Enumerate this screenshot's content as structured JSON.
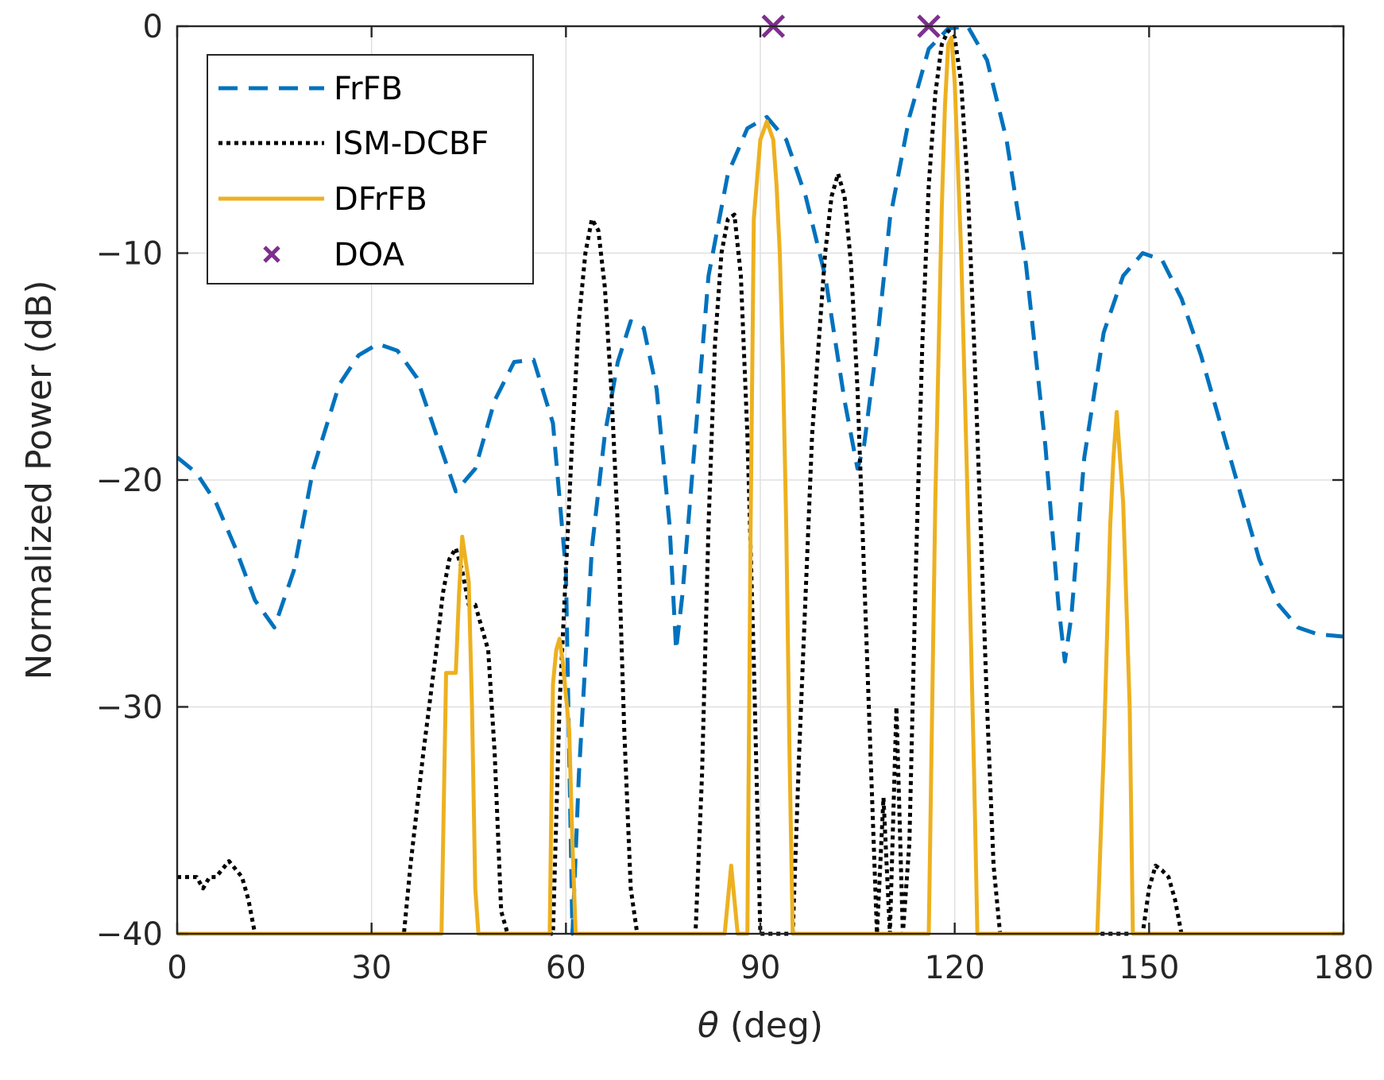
{
  "chart_data": {
    "type": "line",
    "title": "",
    "xlabel_symbol": "θ",
    "xlabel_unit": " (deg)",
    "ylabel": "Normalized Power (dB)",
    "xlim": [
      0,
      180
    ],
    "ylim": [
      -40,
      0
    ],
    "xticks": [
      0,
      30,
      60,
      90,
      120,
      150,
      180
    ],
    "yticks": [
      0,
      -10,
      -20,
      -30,
      -40
    ],
    "xtick_labels": [
      "0",
      "30",
      "60",
      "90",
      "120",
      "150",
      "180"
    ],
    "ytick_labels": [
      "0",
      "−10",
      "−20",
      "−30",
      "−40"
    ],
    "grid": true,
    "legend_position": "top-left",
    "series": [
      {
        "name": "FrFB",
        "style": "dashed",
        "color": "#0072BD",
        "x": [
          0,
          3,
          6,
          9,
          12,
          15,
          18,
          21,
          25,
          28,
          31,
          34,
          37,
          40,
          43,
          46,
          49,
          52,
          55,
          58,
          60,
          61,
          62,
          64,
          66,
          68,
          70,
          72,
          74,
          76,
          77,
          78,
          80,
          82,
          85,
          88,
          91,
          94,
          97,
          100,
          103,
          105,
          106,
          108,
          110,
          113,
          116,
          119,
          122,
          125,
          128,
          131,
          134,
          136,
          137,
          138,
          140,
          143,
          146,
          149,
          152,
          155,
          158,
          161,
          164,
          167,
          170,
          173,
          176,
          180
        ],
        "y": [
          -19,
          -19.7,
          -21,
          -23,
          -25.3,
          -26.5,
          -24,
          -19.5,
          -15.8,
          -14.5,
          -14,
          -14.3,
          -15.5,
          -18,
          -20.5,
          -19.5,
          -16.5,
          -14.8,
          -14.7,
          -17.5,
          -24,
          -40,
          -33,
          -23,
          -18,
          -14.8,
          -13,
          -13.3,
          -16,
          -22,
          -27.5,
          -25,
          -18,
          -11,
          -6.5,
          -4.5,
          -4,
          -5,
          -7.5,
          -11,
          -16.5,
          -19.5,
          -18.5,
          -14,
          -8.5,
          -4,
          -1,
          -0.1,
          0,
          -1.5,
          -5,
          -10.5,
          -18.5,
          -25.5,
          -28,
          -26,
          -19,
          -13.5,
          -11,
          -10,
          -10.3,
          -12,
          -14.5,
          -17.5,
          -20.5,
          -23.5,
          -25.5,
          -26.5,
          -26.8,
          -26.9
        ]
      },
      {
        "name": "ISM-DCBF",
        "style": "dotted",
        "color": "#000000",
        "x": [
          0,
          3,
          4,
          5,
          6,
          8,
          10,
          11,
          12,
          12.5,
          35,
          36,
          38,
          40,
          41,
          42,
          43,
          44,
          45,
          46,
          47,
          48,
          49,
          50,
          51,
          52,
          58,
          59,
          60,
          61,
          62,
          63,
          64,
          65,
          66,
          67,
          68,
          69,
          70,
          71,
          80,
          81,
          82,
          83,
          84,
          85,
          86,
          87,
          88,
          89,
          90,
          95,
          96,
          98,
          100,
          101,
          102,
          103,
          104,
          105,
          106,
          107,
          108,
          109,
          110,
          111,
          112,
          113,
          114,
          115,
          116,
          117,
          118,
          119,
          120,
          121,
          122,
          123,
          124,
          125,
          126,
          127,
          128,
          148,
          149,
          150,
          151,
          152,
          153,
          154,
          155,
          155.5
        ],
        "y": [
          -37.5,
          -37.5,
          -38,
          -37.5,
          -37.5,
          -36.8,
          -37.5,
          -38.5,
          -40,
          -40,
          -40,
          -37,
          -32,
          -27.5,
          -25,
          -23.5,
          -23,
          -24,
          -25.5,
          -25.5,
          -26.5,
          -27.5,
          -32,
          -39,
          -40,
          -40,
          -40,
          -30,
          -24,
          -18,
          -13,
          -10,
          -8.5,
          -9,
          -11.5,
          -16,
          -22,
          -31,
          -38,
          -40,
          -40,
          -33,
          -22,
          -14,
          -10,
          -8.5,
          -8.3,
          -11,
          -18,
          -28,
          -40,
          -40,
          -32,
          -18,
          -10,
          -7.5,
          -6.5,
          -7.5,
          -10.5,
          -16,
          -24,
          -32,
          -40,
          -34,
          -40,
          -30,
          -40,
          -36,
          -24,
          -14,
          -7,
          -3,
          -0.8,
          -0.2,
          -0.5,
          -2.5,
          -7,
          -14,
          -22,
          -30,
          -37,
          -40,
          -40,
          -40,
          -40,
          -38,
          -37,
          -37.2,
          -37.5,
          -38.5,
          -40,
          -40
        ]
      },
      {
        "name": "DFrFB",
        "style": "solid",
        "color": "#EDB120",
        "x": [
          0,
          40.8,
          41.5,
          42.5,
          43,
          43.5,
          44,
          44.5,
          45,
          45.5,
          46,
          46.5,
          57.5,
          58,
          58.5,
          59,
          59.5,
          60,
          60.5,
          61,
          61.5,
          84.5,
          85,
          85.5,
          86,
          86.5,
          87,
          88,
          88.5,
          89,
          90,
          91,
          92,
          92.5,
          93,
          93.5,
          94,
          94.5,
          95,
          96,
          116,
          117,
          118,
          118.5,
          119,
          119.5,
          120,
          121,
          122,
          123,
          123.5,
          142,
          143,
          144,
          144.5,
          145,
          146,
          147,
          147.5,
          180
        ],
        "y": [
          -40,
          -40,
          -28.5,
          -28.5,
          -28.5,
          -25,
          -22.5,
          -23.5,
          -24.5,
          -30,
          -38,
          -40,
          -40,
          -29,
          -27.5,
          -27,
          -28,
          -29.5,
          -31,
          -36,
          -40,
          -40,
          -38.5,
          -37,
          -38.5,
          -40,
          -40,
          -40,
          -22,
          -8.5,
          -5,
          -4.2,
          -5,
          -7,
          -10,
          -15,
          -22,
          -32,
          -40,
          -40,
          -40,
          -21,
          -8,
          -3.5,
          -0.8,
          -0.5,
          -2.5,
          -10,
          -21,
          -33,
          -40,
          -40,
          -32,
          -22,
          -19,
          -17,
          -21,
          -30,
          -40,
          -40
        ]
      }
    ],
    "markers": {
      "name": "DOA",
      "symbol": "x",
      "color": "#7E2F8E",
      "x": [
        92,
        116
      ],
      "y": [
        0,
        0
      ]
    }
  }
}
